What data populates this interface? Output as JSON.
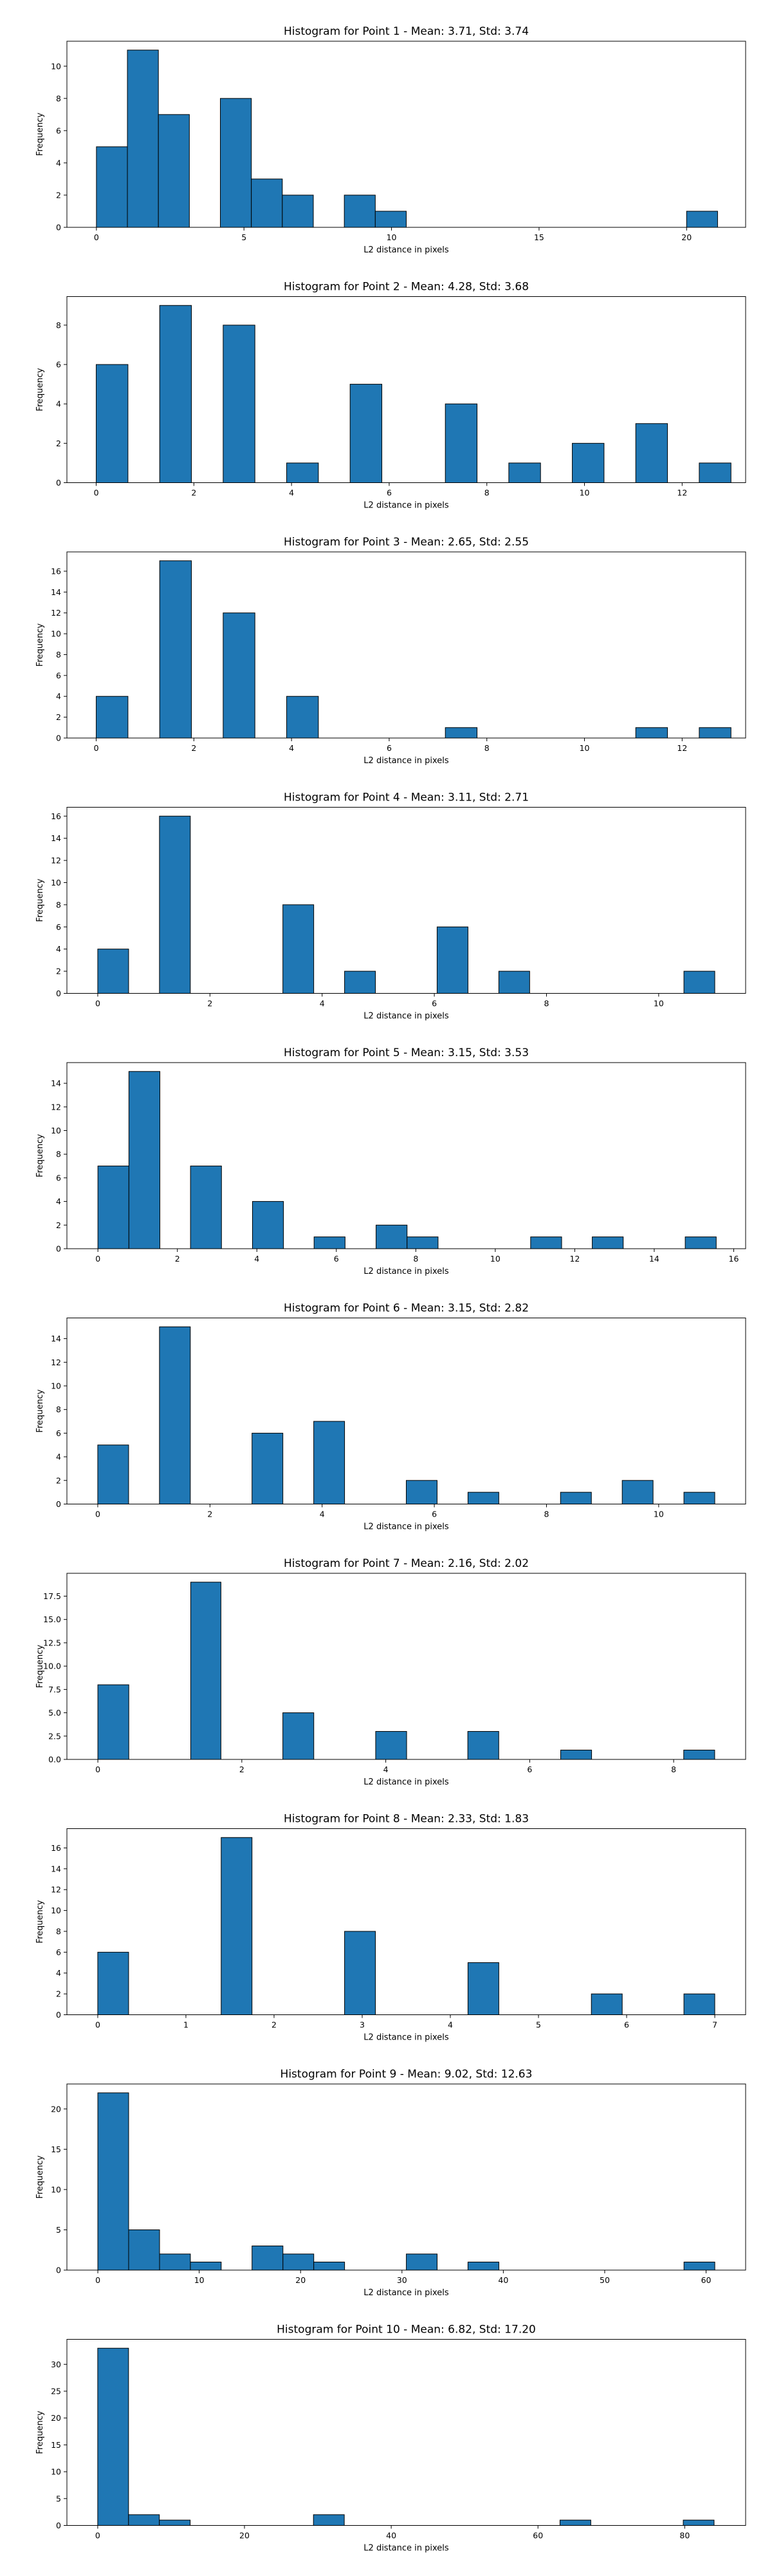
{
  "chart_data": [
    {
      "type": "bar",
      "title": "Histogram for Point 1 - Mean: 3.71, Std: 3.74",
      "xlabel": "L2 distance in pixels",
      "ylabel": "Frequency",
      "xlim": [
        -1.0,
        22.0
      ],
      "ylim": [
        0,
        11.55
      ],
      "xticks": [
        0,
        5,
        10,
        15,
        20
      ],
      "yticks": [
        0,
        2,
        4,
        6,
        8,
        10
      ],
      "bins": [
        {
          "x0": 0.0,
          "x1": 1.05,
          "value": 5
        },
        {
          "x0": 1.05,
          "x1": 2.1,
          "value": 11
        },
        {
          "x0": 2.1,
          "x1": 3.15,
          "value": 7
        },
        {
          "x0": 4.2,
          "x1": 5.25,
          "value": 8
        },
        {
          "x0": 5.25,
          "x1": 6.3,
          "value": 3
        },
        {
          "x0": 6.3,
          "x1": 7.35,
          "value": 2
        },
        {
          "x0": 8.4,
          "x1": 9.45,
          "value": 2
        },
        {
          "x0": 9.45,
          "x1": 10.5,
          "value": 1
        },
        {
          "x0": 20.0,
          "x1": 21.05,
          "value": 1
        }
      ]
    },
    {
      "type": "bar",
      "title": "Histogram for Point 2 - Mean: 4.28, Std: 3.68",
      "xlabel": "L2 distance in pixels",
      "ylabel": "Frequency",
      "xlim": [
        -0.6,
        13.3
      ],
      "ylim": [
        0,
        9.45
      ],
      "xticks": [
        0,
        2,
        4,
        6,
        8,
        10,
        12
      ],
      "yticks": [
        0,
        2,
        4,
        6,
        8
      ],
      "bins": [
        {
          "x0": 0.0,
          "x1": 0.65,
          "value": 6
        },
        {
          "x0": 1.3,
          "x1": 1.95,
          "value": 9
        },
        {
          "x0": 2.6,
          "x1": 3.25,
          "value": 8
        },
        {
          "x0": 3.9,
          "x1": 4.55,
          "value": 1
        },
        {
          "x0": 5.2,
          "x1": 5.85,
          "value": 5
        },
        {
          "x0": 7.15,
          "x1": 7.8,
          "value": 4
        },
        {
          "x0": 8.45,
          "x1": 9.1,
          "value": 1
        },
        {
          "x0": 9.75,
          "x1": 10.4,
          "value": 2
        },
        {
          "x0": 11.05,
          "x1": 11.7,
          "value": 3
        },
        {
          "x0": 12.35,
          "x1": 13.0,
          "value": 1
        }
      ]
    },
    {
      "type": "bar",
      "title": "Histogram for Point 3 - Mean: 2.65, Std: 2.55",
      "xlabel": "L2 distance in pixels",
      "ylabel": "Frequency",
      "xlim": [
        -0.6,
        13.3
      ],
      "ylim": [
        0,
        17.85
      ],
      "xticks": [
        0,
        2,
        4,
        6,
        8,
        10,
        12
      ],
      "yticks": [
        0,
        2,
        4,
        6,
        8,
        10,
        12,
        14,
        16
      ],
      "bins": [
        {
          "x0": 0.0,
          "x1": 0.65,
          "value": 4
        },
        {
          "x0": 1.3,
          "x1": 1.95,
          "value": 17
        },
        {
          "x0": 2.6,
          "x1": 3.25,
          "value": 12
        },
        {
          "x0": 3.9,
          "x1": 4.55,
          "value": 4
        },
        {
          "x0": 7.15,
          "x1": 7.8,
          "value": 1
        },
        {
          "x0": 11.05,
          "x1": 11.7,
          "value": 1
        },
        {
          "x0": 12.35,
          "x1": 13.0,
          "value": 1
        }
      ]
    },
    {
      "type": "bar",
      "title": "Histogram for Point 4 - Mean: 3.11, Std: 2.71",
      "xlabel": "L2 distance in pixels",
      "ylabel": "Frequency",
      "xlim": [
        -0.55,
        11.55
      ],
      "ylim": [
        0,
        16.8
      ],
      "xticks": [
        0,
        2,
        4,
        6,
        8,
        10
      ],
      "yticks": [
        0,
        2,
        4,
        6,
        8,
        10,
        12,
        14,
        16
      ],
      "bins": [
        {
          "x0": 0.0,
          "x1": 0.55,
          "value": 4
        },
        {
          "x0": 1.1,
          "x1": 1.65,
          "value": 16
        },
        {
          "x0": 3.3,
          "x1": 3.85,
          "value": 8
        },
        {
          "x0": 4.4,
          "x1": 4.95,
          "value": 2
        },
        {
          "x0": 6.05,
          "x1": 6.6,
          "value": 6
        },
        {
          "x0": 7.15,
          "x1": 7.7,
          "value": 2
        },
        {
          "x0": 10.45,
          "x1": 11.0,
          "value": 2
        }
      ]
    },
    {
      "type": "bar",
      "title": "Histogram for Point 5 - Mean: 3.15, Std: 3.53",
      "xlabel": "L2 distance in pixels",
      "ylabel": "Frequency",
      "xlim": [
        -0.78,
        16.3
      ],
      "ylim": [
        0,
        15.75
      ],
      "xticks": [
        0,
        2,
        4,
        6,
        8,
        10,
        12,
        14,
        16
      ],
      "yticks": [
        0,
        2,
        4,
        6,
        8,
        10,
        12,
        14
      ],
      "bins": [
        {
          "x0": 0.0,
          "x1": 0.78,
          "value": 7
        },
        {
          "x0": 0.78,
          "x1": 1.56,
          "value": 15
        },
        {
          "x0": 2.33,
          "x1": 3.11,
          "value": 7
        },
        {
          "x0": 3.89,
          "x1": 4.67,
          "value": 4
        },
        {
          "x0": 5.44,
          "x1": 6.22,
          "value": 1
        },
        {
          "x0": 7.0,
          "x1": 7.78,
          "value": 2
        },
        {
          "x0": 7.78,
          "x1": 8.56,
          "value": 1
        },
        {
          "x0": 10.89,
          "x1": 11.67,
          "value": 1
        },
        {
          "x0": 12.44,
          "x1": 13.22,
          "value": 1
        },
        {
          "x0": 14.78,
          "x1": 15.56,
          "value": 1
        }
      ]
    },
    {
      "type": "bar",
      "title": "Histogram for Point 6 - Mean: 3.15, Std: 2.82",
      "xlabel": "L2 distance in pixels",
      "ylabel": "Frequency",
      "xlim": [
        -0.55,
        11.55
      ],
      "ylim": [
        0,
        15.75
      ],
      "xticks": [
        0,
        2,
        4,
        6,
        8,
        10
      ],
      "yticks": [
        0,
        2,
        4,
        6,
        8,
        10,
        12,
        14
      ],
      "bins": [
        {
          "x0": 0.0,
          "x1": 0.55,
          "value": 5
        },
        {
          "x0": 1.1,
          "x1": 1.65,
          "value": 15
        },
        {
          "x0": 2.75,
          "x1": 3.3,
          "value": 6
        },
        {
          "x0": 3.85,
          "x1": 4.4,
          "value": 7
        },
        {
          "x0": 5.5,
          "x1": 6.05,
          "value": 2
        },
        {
          "x0": 6.6,
          "x1": 7.15,
          "value": 1
        },
        {
          "x0": 8.25,
          "x1": 8.8,
          "value": 1
        },
        {
          "x0": 9.35,
          "x1": 9.9,
          "value": 2
        },
        {
          "x0": 10.45,
          "x1": 11.0,
          "value": 1
        }
      ]
    },
    {
      "type": "bar",
      "title": "Histogram for Point 7 - Mean: 2.16, Std: 2.02",
      "xlabel": "L2 distance in pixels",
      "ylabel": "Frequency",
      "xlim": [
        -0.43,
        9.0
      ],
      "ylim": [
        0,
        19.95
      ],
      "xticks": [
        0,
        2,
        4,
        6,
        8
      ],
      "yticks": [
        0,
        2.5,
        5.0,
        7.5,
        10.0,
        12.5,
        15.0,
        17.5
      ],
      "ytick_labels": [
        "0.0",
        "2.5",
        "5.0",
        "7.5",
        "10.0",
        "12.5",
        "15.0",
        "17.5"
      ],
      "bins": [
        {
          "x0": 0.0,
          "x1": 0.43,
          "value": 8
        },
        {
          "x0": 1.29,
          "x1": 1.71,
          "value": 19
        },
        {
          "x0": 2.57,
          "x1": 3.0,
          "value": 5
        },
        {
          "x0": 3.86,
          "x1": 4.29,
          "value": 3
        },
        {
          "x0": 5.14,
          "x1": 5.57,
          "value": 3
        },
        {
          "x0": 6.43,
          "x1": 6.86,
          "value": 1
        },
        {
          "x0": 8.14,
          "x1": 8.57,
          "value": 1
        }
      ]
    },
    {
      "type": "bar",
      "title": "Histogram for Point 8 - Mean: 2.33, Std: 1.83",
      "xlabel": "L2 distance in pixels",
      "ylabel": "Frequency",
      "xlim": [
        -0.35,
        7.35
      ],
      "ylim": [
        0,
        17.85
      ],
      "xticks": [
        0,
        1,
        2,
        3,
        4,
        5,
        6,
        7
      ],
      "yticks": [
        0,
        2,
        4,
        6,
        8,
        10,
        12,
        14,
        16
      ],
      "bins": [
        {
          "x0": 0.0,
          "x1": 0.35,
          "value": 6
        },
        {
          "x0": 1.4,
          "x1": 1.75,
          "value": 17
        },
        {
          "x0": 2.8,
          "x1": 3.15,
          "value": 8
        },
        {
          "x0": 4.2,
          "x1": 4.55,
          "value": 5
        },
        {
          "x0": 5.6,
          "x1": 5.95,
          "value": 2
        },
        {
          "x0": 6.65,
          "x1": 7.0,
          "value": 2
        }
      ]
    },
    {
      "type": "bar",
      "title": "Histogram for Point 9 - Mean: 9.02, Std: 12.63",
      "xlabel": "L2 distance in pixels",
      "ylabel": "Frequency",
      "xlim": [
        -3.05,
        63.9
      ],
      "ylim": [
        0,
        23.1
      ],
      "xticks": [
        0,
        10,
        20,
        30,
        40,
        50,
        60
      ],
      "yticks": [
        0,
        5,
        10,
        15,
        20
      ],
      "bins": [
        {
          "x0": 0.0,
          "x1": 3.04,
          "value": 22
        },
        {
          "x0": 3.04,
          "x1": 6.09,
          "value": 5
        },
        {
          "x0": 6.09,
          "x1": 9.13,
          "value": 2
        },
        {
          "x0": 9.13,
          "x1": 12.17,
          "value": 1
        },
        {
          "x0": 15.21,
          "x1": 18.26,
          "value": 3
        },
        {
          "x0": 18.26,
          "x1": 21.3,
          "value": 2
        },
        {
          "x0": 21.3,
          "x1": 24.34,
          "value": 1
        },
        {
          "x0": 30.43,
          "x1": 33.47,
          "value": 2
        },
        {
          "x0": 36.51,
          "x1": 39.56,
          "value": 1
        },
        {
          "x0": 57.82,
          "x1": 60.86,
          "value": 1
        }
      ]
    },
    {
      "type": "bar",
      "title": "Histogram for Point 10 - Mean: 6.82, Std: 17.20",
      "xlabel": "L2 distance in pixels",
      "ylabel": "Frequency",
      "xlim": [
        -4.2,
        88.3
      ],
      "ylim": [
        0,
        34.65
      ],
      "xticks": [
        0,
        20,
        40,
        60,
        80
      ],
      "yticks": [
        0,
        5,
        10,
        15,
        20,
        25,
        30
      ],
      "bins": [
        {
          "x0": 0.0,
          "x1": 4.2,
          "value": 33
        },
        {
          "x0": 4.2,
          "x1": 8.4,
          "value": 2
        },
        {
          "x0": 8.4,
          "x1": 12.6,
          "value": 1
        },
        {
          "x0": 29.4,
          "x1": 33.6,
          "value": 2
        },
        {
          "x0": 63.0,
          "x1": 67.2,
          "value": 1
        },
        {
          "x0": 79.8,
          "x1": 84.0,
          "value": 1
        }
      ]
    }
  ]
}
